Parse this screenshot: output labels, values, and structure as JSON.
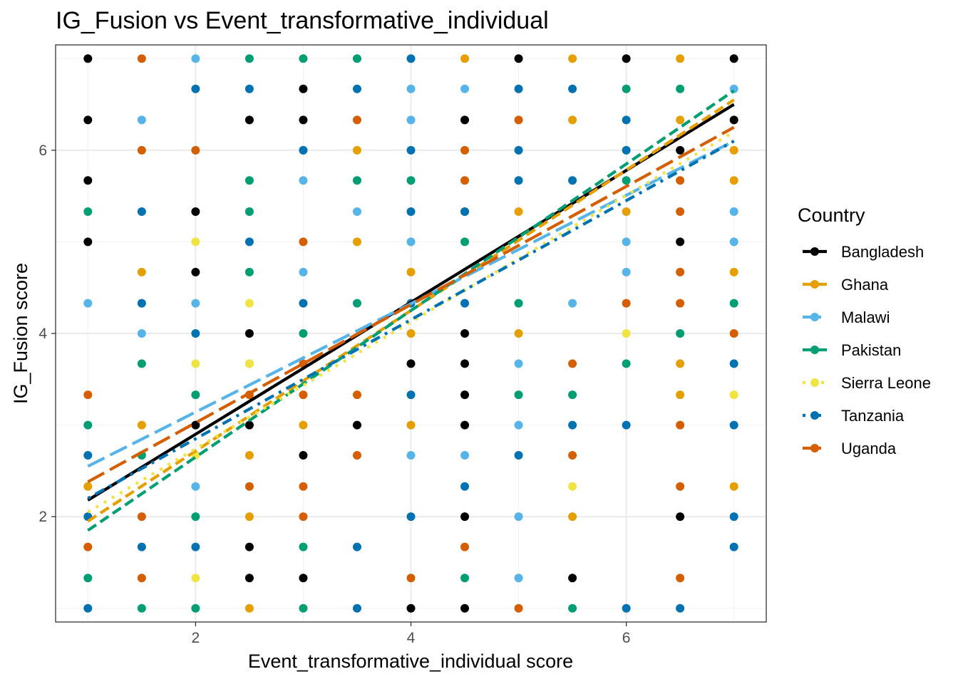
{
  "chart_data": {
    "type": "scatter",
    "title": "IG_Fusion vs Event_transformative_individual",
    "xlabel": "Event_transformative_individual score",
    "ylabel": "IG_Fusion score",
    "xlim": [
      0.7,
      7.3
    ],
    "ylim": [
      0.85,
      7.15
    ],
    "xticks": [
      2,
      4,
      6
    ],
    "yticks": [
      2,
      4,
      6
    ],
    "grid": true,
    "legend_title": "Country",
    "legend_position": "right",
    "series": [
      {
        "name": "Bangladesh",
        "color": "#000000",
        "dash": "solid",
        "fit": {
          "x": [
            1,
            7
          ],
          "y": [
            2.18,
            6.5
          ]
        },
        "points": [
          [
            1,
            7
          ],
          [
            1,
            6.33
          ],
          [
            1,
            5.67
          ],
          [
            1,
            5
          ],
          [
            2,
            5.33
          ],
          [
            2,
            4.67
          ],
          [
            2,
            3
          ],
          [
            2.5,
            6.33
          ],
          [
            2.5,
            4
          ],
          [
            2.5,
            3
          ],
          [
            2.5,
            1.67
          ],
          [
            2.5,
            1.33
          ],
          [
            3,
            6.67
          ],
          [
            3,
            6.33
          ],
          [
            3,
            2.67
          ],
          [
            3,
            1.33
          ],
          [
            3.5,
            3
          ],
          [
            4,
            3.67
          ],
          [
            4,
            1
          ],
          [
            4.5,
            6.33
          ],
          [
            4.5,
            4
          ],
          [
            4.5,
            3.67
          ],
          [
            4.5,
            3.33
          ],
          [
            4.5,
            3
          ],
          [
            4.5,
            2
          ],
          [
            4.5,
            1
          ],
          [
            5,
            7
          ],
          [
            5.5,
            1.33
          ],
          [
            6,
            7
          ],
          [
            6.5,
            6
          ],
          [
            6.5,
            5
          ],
          [
            6.5,
            2
          ],
          [
            7,
            7
          ],
          [
            7,
            6.33
          ]
        ]
      },
      {
        "name": "Ghana",
        "color": "#E69F00",
        "dash": "dashed",
        "fit": {
          "x": [
            1,
            7
          ],
          "y": [
            1.95,
            6.55
          ]
        },
        "points": [
          [
            1,
            2.33
          ],
          [
            1.5,
            4.67
          ],
          [
            1.5,
            3
          ],
          [
            2.5,
            3.67
          ],
          [
            2.5,
            2.67
          ],
          [
            2.5,
            2
          ],
          [
            2.5,
            1
          ],
          [
            3,
            3
          ],
          [
            3.5,
            6
          ],
          [
            3.5,
            5
          ],
          [
            4,
            4.67
          ],
          [
            4,
            4
          ],
          [
            4,
            3
          ],
          [
            4.5,
            7
          ],
          [
            4.5,
            5.33
          ],
          [
            5,
            5.33
          ],
          [
            5,
            4
          ],
          [
            5.5,
            7
          ],
          [
            5.5,
            6.33
          ],
          [
            5.5,
            2
          ],
          [
            6,
            5.33
          ],
          [
            6.5,
            7
          ],
          [
            6.5,
            6.33
          ],
          [
            6.5,
            3.67
          ],
          [
            6.5,
            3.33
          ],
          [
            7,
            6
          ],
          [
            7,
            5.67
          ],
          [
            7,
            4.67
          ],
          [
            7,
            2.33
          ]
        ]
      },
      {
        "name": "Malawi",
        "color": "#56B4E9",
        "dash": "longdash",
        "fit": {
          "x": [
            1,
            7
          ],
          "y": [
            2.55,
            6.1
          ]
        },
        "points": [
          [
            1,
            4.33
          ],
          [
            1.5,
            6.33
          ],
          [
            1.5,
            4
          ],
          [
            2,
            7
          ],
          [
            2,
            4.33
          ],
          [
            2,
            2.33
          ],
          [
            3,
            6
          ],
          [
            3,
            5.67
          ],
          [
            3,
            4.67
          ],
          [
            3.5,
            5.33
          ],
          [
            4,
            6.67
          ],
          [
            4,
            6.33
          ],
          [
            4,
            5
          ],
          [
            4,
            2.67
          ],
          [
            4.5,
            6.67
          ],
          [
            4.5,
            2.67
          ],
          [
            5,
            3.67
          ],
          [
            5,
            3
          ],
          [
            5,
            2
          ],
          [
            5,
            1.33
          ],
          [
            5.5,
            4.33
          ],
          [
            6,
            5
          ],
          [
            6,
            4.67
          ],
          [
            7,
            6.67
          ],
          [
            7,
            5.33
          ],
          [
            7,
            5
          ]
        ]
      },
      {
        "name": "Pakistan",
        "color": "#009E73",
        "dash": "dashed",
        "fit": {
          "x": [
            1,
            7
          ],
          "y": [
            1.85,
            6.65
          ]
        },
        "points": [
          [
            1,
            5.33
          ],
          [
            1,
            3
          ],
          [
            1,
            1.33
          ],
          [
            1.5,
            3.67
          ],
          [
            1.5,
            2.67
          ],
          [
            1.5,
            1
          ],
          [
            2,
            3.33
          ],
          [
            2,
            2
          ],
          [
            2,
            1
          ],
          [
            2.5,
            7
          ],
          [
            2.5,
            5.67
          ],
          [
            2.5,
            5.33
          ],
          [
            2.5,
            4.67
          ],
          [
            3,
            7
          ],
          [
            3,
            4
          ],
          [
            3,
            1.67
          ],
          [
            3,
            1
          ],
          [
            3.5,
            7
          ],
          [
            3.5,
            5.67
          ],
          [
            3.5,
            4.33
          ],
          [
            4,
            5.67
          ],
          [
            4.5,
            5
          ],
          [
            4.5,
            1.33
          ],
          [
            5,
            4.33
          ],
          [
            5,
            3.33
          ],
          [
            5.5,
            3.33
          ],
          [
            5.5,
            1
          ],
          [
            6,
            6.67
          ],
          [
            6,
            5.67
          ],
          [
            6,
            3.67
          ],
          [
            6.5,
            6.67
          ],
          [
            6.5,
            4
          ],
          [
            7,
            4.33
          ]
        ]
      },
      {
        "name": "Sierra Leone",
        "color": "#F0E442",
        "dash": "dotted",
        "fit": {
          "x": [
            1,
            7
          ],
          "y": [
            2.05,
            6.2
          ]
        },
        "points": [
          [
            2,
            5
          ],
          [
            2,
            3.67
          ],
          [
            2,
            2.67
          ],
          [
            2,
            1.33
          ],
          [
            2.5,
            4.33
          ],
          [
            2.5,
            3.67
          ],
          [
            5.5,
            2.33
          ],
          [
            6,
            4
          ],
          [
            7,
            3.33
          ]
        ]
      },
      {
        "name": "Tanzania",
        "color": "#0072B2",
        "dash": "dotdash",
        "fit": {
          "x": [
            1,
            7
          ],
          "y": [
            2.2,
            6.1
          ]
        },
        "points": [
          [
            1,
            2.67
          ],
          [
            1,
            2
          ],
          [
            1,
            1
          ],
          [
            1.5,
            5.33
          ],
          [
            1.5,
            4.33
          ],
          [
            1.5,
            1.67
          ],
          [
            2,
            6.67
          ],
          [
            2,
            4
          ],
          [
            2,
            1.67
          ],
          [
            2.5,
            6.67
          ],
          [
            2.5,
            5
          ],
          [
            3,
            6
          ],
          [
            3,
            4.33
          ],
          [
            3.5,
            6.67
          ],
          [
            3.5,
            1.67
          ],
          [
            3.5,
            1
          ],
          [
            4,
            7
          ],
          [
            4,
            6
          ],
          [
            4,
            5.33
          ],
          [
            4,
            4.33
          ],
          [
            4,
            3.33
          ],
          [
            4,
            2
          ],
          [
            4.5,
            5.33
          ],
          [
            4.5,
            4.33
          ],
          [
            4.5,
            2.33
          ],
          [
            5,
            6.67
          ],
          [
            5,
            6
          ],
          [
            5,
            5.67
          ],
          [
            5,
            2.67
          ],
          [
            5.5,
            6.67
          ],
          [
            5.5,
            5.67
          ],
          [
            5.5,
            3
          ],
          [
            6,
            6.33
          ],
          [
            6,
            6
          ],
          [
            6,
            3
          ],
          [
            6,
            1
          ],
          [
            6.5,
            1
          ],
          [
            7,
            3.67
          ],
          [
            7,
            3
          ],
          [
            7,
            2
          ],
          [
            7,
            1.67
          ]
        ]
      },
      {
        "name": "Uganda",
        "color": "#D55E00",
        "dash": "longdash",
        "fit": {
          "x": [
            1,
            7
          ],
          "y": [
            2.38,
            6.25
          ]
        },
        "points": [
          [
            1,
            3.33
          ],
          [
            1,
            1.67
          ],
          [
            1.5,
            7
          ],
          [
            1.5,
            6
          ],
          [
            1.5,
            2
          ],
          [
            1.5,
            1.33
          ],
          [
            2,
            6
          ],
          [
            2.5,
            3.33
          ],
          [
            2.5,
            2.33
          ],
          [
            3,
            5
          ],
          [
            3,
            3.67
          ],
          [
            3,
            3.33
          ],
          [
            3,
            2.33
          ],
          [
            3,
            2
          ],
          [
            3.5,
            6.33
          ],
          [
            3.5,
            3.33
          ],
          [
            3.5,
            2.67
          ],
          [
            4,
            1.33
          ],
          [
            4.5,
            6
          ],
          [
            4.5,
            5.67
          ],
          [
            4.5,
            1.67
          ],
          [
            5,
            6.33
          ],
          [
            5,
            1
          ],
          [
            5.5,
            3.67
          ],
          [
            5.5,
            2.67
          ],
          [
            6,
            4.33
          ],
          [
            6.5,
            5.67
          ],
          [
            6.5,
            5.33
          ],
          [
            6.5,
            4.67
          ],
          [
            6.5,
            4.33
          ],
          [
            6.5,
            3
          ],
          [
            6.5,
            2.33
          ],
          [
            6.5,
            1.33
          ],
          [
            7,
            4
          ]
        ]
      }
    ]
  }
}
